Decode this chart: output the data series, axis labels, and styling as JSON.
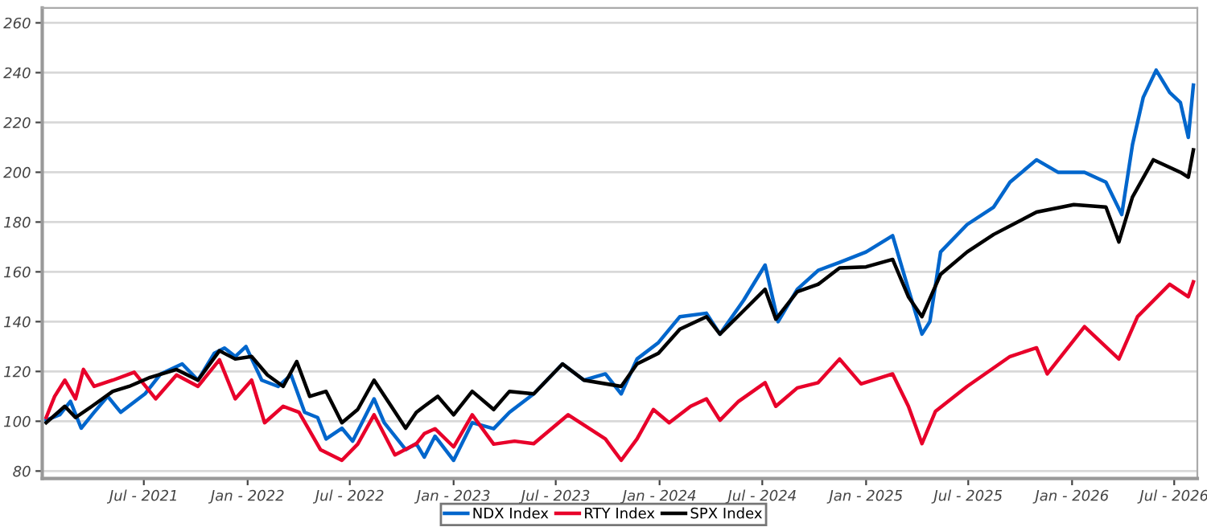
{
  "chart_data": {
    "type": "line",
    "xlim": [
      "2021-01-02",
      "2026-08-11"
    ],
    "ylim": [
      77,
      266
    ],
    "yticks": [
      80,
      100,
      120,
      140,
      160,
      180,
      200,
      220,
      240,
      260
    ],
    "xticks": [
      {
        "value": "2021-07-01",
        "label": "Jul - 2021"
      },
      {
        "value": "2022-01-01",
        "label": "Jan - 2022"
      },
      {
        "value": "2022-07-01",
        "label": "Jul - 2022"
      },
      {
        "value": "2023-01-01",
        "label": "Jan - 2023"
      },
      {
        "value": "2023-07-01",
        "label": "Jul - 2023"
      },
      {
        "value": "2024-01-01",
        "label": "Jan - 2024"
      },
      {
        "value": "2024-07-01",
        "label": "Jul - 2024"
      },
      {
        "value": "2025-01-01",
        "label": "Jan - 2025"
      },
      {
        "value": "2025-07-01",
        "label": "Jul - 2025"
      },
      {
        "value": "2026-01-01",
        "label": "Jan - 2026"
      },
      {
        "value": "2026-07-01",
        "label": "Jul - 2026"
      }
    ],
    "grid": "y",
    "legend": "bottom",
    "marker": "none",
    "line_style": "solid",
    "series": [
      {
        "name": "NDX Index",
        "color": "#0066cc",
        "x": [
          "2021-01-09",
          "2021-02-02",
          "2021-02-21",
          "2021-03-12",
          "2021-04-04",
          "2021-04-28",
          "2021-05-21",
          "2021-07-03",
          "2021-07-31",
          "2021-09-07",
          "2021-10-05",
          "2021-11-03",
          "2021-11-21",
          "2021-12-10",
          "2021-12-29",
          "2022-01-26",
          "2022-02-24",
          "2022-03-19",
          "2022-04-12",
          "2022-05-05",
          "2022-05-20",
          "2022-06-17",
          "2022-07-06",
          "2022-08-13",
          "2022-08-31",
          "2022-10-08",
          "2022-10-27",
          "2022-11-10",
          "2022-11-29",
          "2023-01-01",
          "2023-02-03",
          "2023-03-13",
          "2023-04-10",
          "2023-05-23",
          "2023-07-13",
          "2023-08-20",
          "2023-09-27",
          "2023-10-25",
          "2023-11-22",
          "2023-12-30",
          "2024-02-06",
          "2024-03-24",
          "2024-04-17",
          "2024-05-29",
          "2024-07-06",
          "2024-07-29",
          "2024-09-01",
          "2024-10-08",
          "2024-11-15",
          "2025-01-01",
          "2025-02-17",
          "2025-03-17",
          "2025-04-10",
          "2025-04-24",
          "2025-05-13",
          "2025-06-29",
          "2025-08-15",
          "2025-09-13",
          "2025-10-30",
          "2025-12-07",
          "2026-01-23",
          "2026-03-02",
          "2026-03-30",
          "2026-04-18",
          "2026-05-07",
          "2026-05-30",
          "2026-06-23",
          "2026-07-12",
          "2026-07-26",
          "2026-08-04"
        ],
        "values": [
          100.4,
          102.6,
          108,
          97.2,
          103.6,
          110,
          103.6,
          111,
          119,
          123,
          116.5,
          127.3,
          129.4,
          126,
          130,
          116.5,
          114,
          118.6,
          103.6,
          101.5,
          92.9,
          97.2,
          92,
          109,
          99.4,
          88.6,
          91,
          85.6,
          94,
          84.3,
          99.4,
          97,
          103.6,
          111,
          123,
          116.5,
          119,
          111,
          125,
          131.6,
          142,
          143.4,
          135,
          148.6,
          162.7,
          140,
          153,
          160.6,
          163.8,
          168,
          174.5,
          153,
          135,
          140,
          168,
          179,
          186,
          196,
          205,
          200,
          200,
          196,
          183,
          211,
          230,
          241,
          232,
          228,
          214,
          235
        ]
      },
      {
        "name": "RTY Index",
        "color": "#e8002a",
        "x": [
          "2021-01-09",
          "2021-01-24",
          "2021-02-11",
          "2021-03-02",
          "2021-03-16",
          "2021-04-04",
          "2021-05-07",
          "2021-06-14",
          "2021-07-22",
          "2021-08-28",
          "2021-10-05",
          "2021-11-12",
          "2021-12-10",
          "2022-01-08",
          "2022-01-31",
          "2022-03-05",
          "2022-04-02",
          "2022-05-10",
          "2022-06-17",
          "2022-07-15",
          "2022-08-13",
          "2022-09-19",
          "2022-10-27",
          "2022-11-10",
          "2022-11-29",
          "2023-01-01",
          "2023-02-03",
          "2023-03-13",
          "2023-04-19",
          "2023-05-23",
          "2023-07-23",
          "2023-08-30",
          "2023-09-27",
          "2023-10-25",
          "2023-11-22",
          "2023-12-21",
          "2024-01-18",
          "2024-02-25",
          "2024-03-24",
          "2024-04-17",
          "2024-05-20",
          "2024-07-06",
          "2024-07-25",
          "2024-09-01",
          "2024-10-08",
          "2024-11-15",
          "2024-12-23",
          "2025-02-17",
          "2025-03-17",
          "2025-04-10",
          "2025-05-04",
          "2025-06-29",
          "2025-09-13",
          "2025-10-30",
          "2025-11-18",
          "2026-01-23",
          "2026-03-25",
          "2026-04-27",
          "2026-06-23",
          "2026-07-26",
          "2026-08-04"
        ],
        "values": [
          101.5,
          110,
          116.5,
          109,
          120.8,
          114,
          116.5,
          119.7,
          109,
          118.6,
          114,
          124.7,
          109,
          116.5,
          99.4,
          106,
          103.6,
          88.6,
          84.3,
          90.8,
          102.6,
          86.5,
          91,
          95,
          97,
          89.7,
          102.6,
          90.8,
          92,
          91,
          102.6,
          97,
          92.9,
          84.3,
          92.9,
          104.7,
          99.4,
          106,
          109,
          100.4,
          108,
          115.5,
          106,
          113.4,
          115.5,
          125,
          115,
          119,
          106,
          91,
          104,
          114,
          126,
          129.5,
          119,
          138,
          125,
          142,
          155,
          150,
          156
        ]
      },
      {
        "name": "SPX Index",
        "color": "#000000",
        "x": [
          "2021-01-09",
          "2021-02-11",
          "2021-03-02",
          "2021-03-31",
          "2021-05-07",
          "2021-06-05",
          "2021-07-12",
          "2021-08-28",
          "2021-10-05",
          "2021-11-12",
          "2021-12-10",
          "2022-01-08",
          "2022-02-05",
          "2022-03-05",
          "2022-03-29",
          "2022-04-21",
          "2022-05-20",
          "2022-06-17",
          "2022-07-15",
          "2022-08-13",
          "2022-09-10",
          "2022-10-08",
          "2022-10-27",
          "2022-11-10",
          "2022-12-04",
          "2023-01-01",
          "2023-02-03",
          "2023-03-13",
          "2023-04-10",
          "2023-05-23",
          "2023-07-13",
          "2023-08-20",
          "2023-10-25",
          "2023-11-22",
          "2023-12-30",
          "2024-02-06",
          "2024-03-24",
          "2024-04-17",
          "2024-05-29",
          "2024-07-06",
          "2024-07-25",
          "2024-09-01",
          "2024-10-08",
          "2024-11-15",
          "2025-01-01",
          "2025-02-17",
          "2025-03-17",
          "2025-04-10",
          "2025-05-13",
          "2025-06-29",
          "2025-08-15",
          "2025-10-30",
          "2026-01-04",
          "2026-03-02",
          "2026-03-25",
          "2026-04-18",
          "2026-05-25",
          "2026-07-12",
          "2026-07-26",
          "2026-08-04"
        ],
        "values": [
          99.4,
          106,
          101.5,
          106,
          112,
          114,
          117.6,
          120.8,
          116.5,
          128.3,
          125,
          126,
          118.6,
          114,
          124,
          110,
          112,
          99.4,
          104.7,
          116.5,
          106.9,
          97.2,
          103.6,
          106,
          110,
          102.6,
          112,
          104.7,
          112,
          111,
          123,
          116.5,
          114,
          123,
          127.3,
          137,
          142,
          135,
          144.4,
          153,
          141,
          152,
          155,
          161.6,
          162,
          165,
          150,
          142,
          159,
          168,
          175,
          184,
          187,
          186,
          172,
          190,
          205,
          200,
          198,
          209
        ]
      }
    ]
  }
}
